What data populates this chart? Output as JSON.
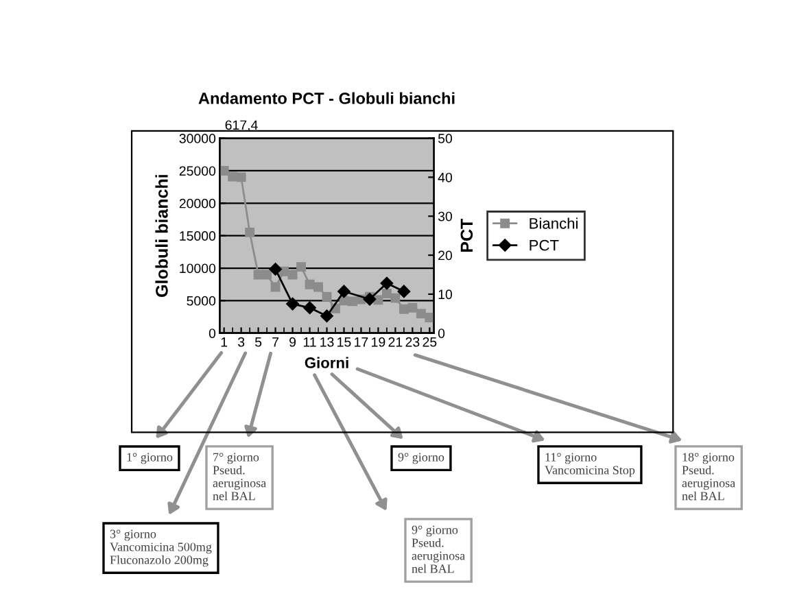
{
  "chart_data": {
    "type": "line",
    "title": "Andamento PCT - Globuli bianchi",
    "xlabel": "Giorni",
    "ylabel": "Globuli bianchi",
    "y2label": "PCT",
    "x": [
      1,
      2,
      3,
      4,
      5,
      6,
      7,
      8,
      9,
      10,
      11,
      12,
      13,
      14,
      15,
      16,
      17,
      18,
      19,
      20,
      21,
      22,
      23,
      24,
      25
    ],
    "xlim": [
      0.5,
      25.5
    ],
    "xticks": [
      1,
      3,
      5,
      7,
      9,
      11,
      13,
      15,
      17,
      19,
      21,
      23,
      25
    ],
    "ylim": [
      0,
      30000
    ],
    "yticks": [
      0,
      5000,
      10000,
      15000,
      20000,
      25000,
      30000
    ],
    "y2lim": [
      0,
      50
    ],
    "y2ticks": [
      0,
      10,
      20,
      30,
      40,
      50
    ],
    "grid": "y",
    "legend": "right",
    "series": [
      {
        "name": "Bianchi",
        "color": "#8c8c8c",
        "marker": "square",
        "values": [
          25000,
          24100,
          24000,
          15500,
          9000,
          9000,
          7100,
          9500,
          9000,
          10200,
          7500,
          7100,
          5600,
          3800,
          5000,
          4900,
          5200,
          5600,
          5100,
          6100,
          5400,
          3700,
          3900,
          3000,
          2400
        ]
      },
      {
        "name": "PCT",
        "color": "#000000",
        "marker": "diamond",
        "axis": "y2",
        "x": [
          7,
          9,
          11,
          13,
          15,
          18,
          20,
          22
        ],
        "values": [
          16.4,
          7.5,
          6.5,
          4.4,
          10.7,
          8.7,
          12.8,
          10.7
        ]
      }
    ],
    "annotations": [
      "617,4",
      "1° giorno",
      "3° giorno\nVancomicina 500mg\nFluconazolo 200mg",
      "7° giorno\nPseud.\naeruginosa\nnel BAL",
      "9° giorno\nPseud.\naeruginosa\nnel BAL",
      "9° giorno",
      "11° giorno\nVancomicina Stop",
      "18° giorno\nPseud.\naeruginosa\nnel BAL"
    ]
  }
}
